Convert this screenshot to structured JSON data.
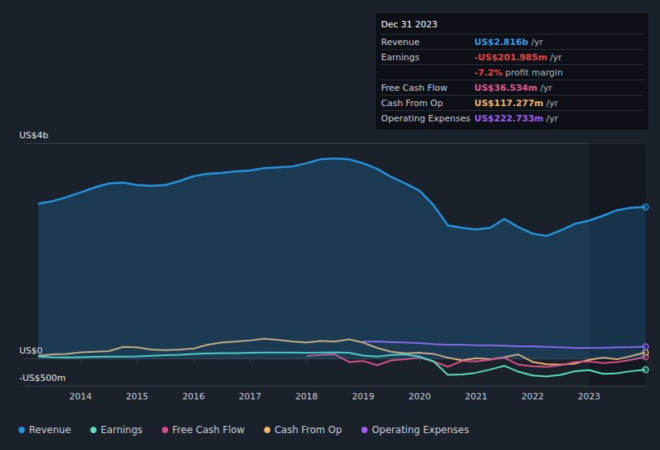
{
  "chart_data": {
    "type": "line",
    "x": [
      2013.25,
      2013.5,
      2013.75,
      2014,
      2014.25,
      2014.5,
      2014.75,
      2015,
      2015.25,
      2015.5,
      2015.75,
      2016,
      2016.25,
      2016.5,
      2016.75,
      2017,
      2017.25,
      2017.5,
      2017.75,
      2018,
      2018.25,
      2018.5,
      2018.75,
      2019,
      2019.25,
      2019.5,
      2019.75,
      2020,
      2020.25,
      2020.5,
      2020.75,
      2021,
      2021.25,
      2021.5,
      2021.75,
      2022,
      2022.25,
      2022.5,
      2022.75,
      2023,
      2023.25,
      2023.5,
      2023.75,
      2024
    ],
    "xlim": [
      2013,
      2024
    ],
    "xticks": [
      2014,
      2015,
      2016,
      2017,
      2018,
      2019,
      2020,
      2021,
      2022,
      2023
    ],
    "ylim": [
      -500,
      4000
    ],
    "yticks": [
      {
        "value": -500,
        "label": "-US$500m"
      },
      {
        "value": 0,
        "label": "US$0"
      },
      {
        "value": 4000,
        "label": "US$4b"
      }
    ],
    "grid": true,
    "legend": "bottom-left",
    "shaded_x": [
      2023,
      2024
    ],
    "series": [
      {
        "name": "Revenue",
        "color": "#2394df",
        "type": "area",
        "values": [
          2876,
          2921,
          2996,
          3086,
          3176,
          3251,
          3266,
          3221,
          3206,
          3221,
          3296,
          3386,
          3431,
          3446,
          3476,
          3491,
          3536,
          3551,
          3566,
          3626,
          3700,
          3715,
          3700,
          3626,
          3521,
          3371,
          3251,
          3116,
          2846,
          2472,
          2427,
          2397,
          2427,
          2592,
          2442,
          2322,
          2277,
          2382,
          2502,
          2562,
          2652,
          2757,
          2801,
          2816
        ]
      },
      {
        "name": "Earnings",
        "color": "#58e0c0",
        "type": "line",
        "values": [
          40,
          30,
          25,
          30,
          35,
          40,
          40,
          45,
          55,
          65,
          75,
          90,
          100,
          105,
          105,
          110,
          115,
          115,
          115,
          110,
          115,
          120,
          110,
          60,
          40,
          70,
          80,
          40,
          -50,
          -300,
          -290,
          -260,
          -200,
          -130,
          -240,
          -310,
          -330,
          -300,
          -230,
          -210,
          -280,
          -270,
          -230,
          -201.985
        ]
      },
      {
        "name": "Free Cash Flow",
        "color": "#d6508a",
        "type": "line",
        "values": [
          null,
          null,
          null,
          null,
          null,
          null,
          null,
          null,
          null,
          null,
          null,
          null,
          null,
          null,
          null,
          null,
          null,
          null,
          null,
          50,
          70,
          80,
          -60,
          -40,
          -120,
          -30,
          -10,
          20,
          -50,
          -150,
          -40,
          -50,
          -20,
          20,
          -110,
          -140,
          -150,
          -120,
          -60,
          -50,
          -80,
          -60,
          -20,
          36.534
        ]
      },
      {
        "name": "Cash From Op",
        "color": "#f2b36b",
        "type": "line",
        "values": [
          60,
          80,
          90,
          120,
          130,
          140,
          220,
          210,
          170,
          160,
          170,
          190,
          260,
          300,
          320,
          340,
          370,
          350,
          320,
          300,
          330,
          320,
          360,
          300,
          200,
          130,
          100,
          110,
          90,
          20,
          -30,
          10,
          -10,
          30,
          80,
          -60,
          -100,
          -110,
          -90,
          -20,
          20,
          -10,
          50,
          117.277
        ]
      },
      {
        "name": "Operating Expenses",
        "color": "#a25cf2",
        "type": "line",
        "values": [
          null,
          null,
          null,
          null,
          null,
          null,
          null,
          null,
          null,
          null,
          null,
          null,
          null,
          null,
          null,
          null,
          null,
          null,
          null,
          null,
          null,
          null,
          null,
          320,
          320,
          310,
          300,
          290,
          270,
          260,
          260,
          250,
          250,
          240,
          230,
          230,
          220,
          210,
          200,
          200,
          205,
          210,
          215,
          222.733
        ]
      }
    ],
    "annotation": {
      "title": "Dec 31 2023",
      "rows": [
        {
          "label": "Revenue",
          "value": "US$2.816b",
          "unit": "/yr",
          "color": "#3b9ce6"
        },
        {
          "label": "Earnings",
          "value": "-US$201.985m",
          "unit": "/yr",
          "color": "#e84545"
        },
        {
          "label": "",
          "value": "-7.2%",
          "unit": "profit margin",
          "color": "#e84545"
        },
        {
          "label": "Free Cash Flow",
          "value": "US$36.534m",
          "unit": "/yr",
          "color": "#e05b95"
        },
        {
          "label": "Cash From Op",
          "value": "US$117.277m",
          "unit": "/yr",
          "color": "#f2b36b"
        },
        {
          "label": "Operating Expenses",
          "value": "US$222.733m",
          "unit": "/yr",
          "color": "#a25cf2"
        }
      ]
    }
  }
}
